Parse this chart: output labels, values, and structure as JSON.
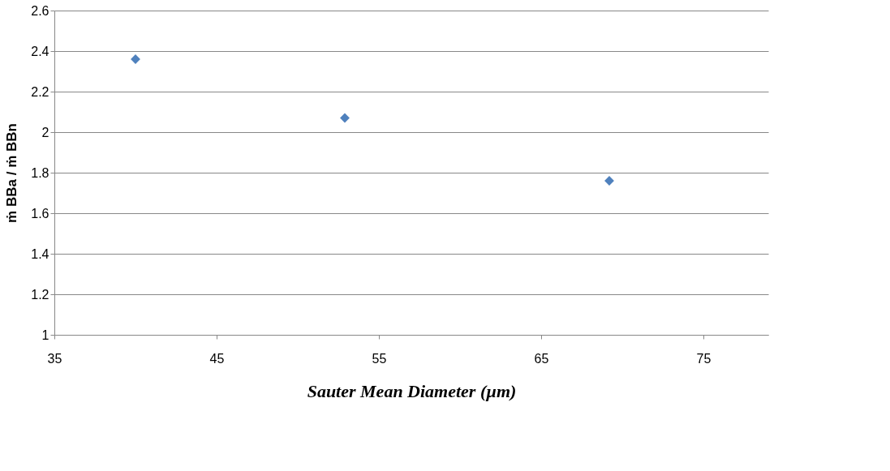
{
  "chart_data": {
    "type": "scatter",
    "xlabel": "Sauter Mean Diameter (µm)",
    "ylabel": "ṁ BBa / ṁ BBn",
    "x": [
      40,
      52.9,
      69.2
    ],
    "series": [
      {
        "color": "#4f81bd",
        "values": [
          2.36,
          2.07,
          1.76
        ]
      }
    ],
    "xlim": [
      35,
      79
    ],
    "xticks": [
      35,
      45,
      55,
      65,
      75
    ],
    "ylim": [
      1,
      2.6
    ],
    "yticks": [
      1,
      1.2,
      1.4,
      1.6,
      1.8,
      2,
      2.2,
      2.4,
      2.6
    ],
    "grid": "y",
    "marker": "diamond",
    "legend": false
  }
}
